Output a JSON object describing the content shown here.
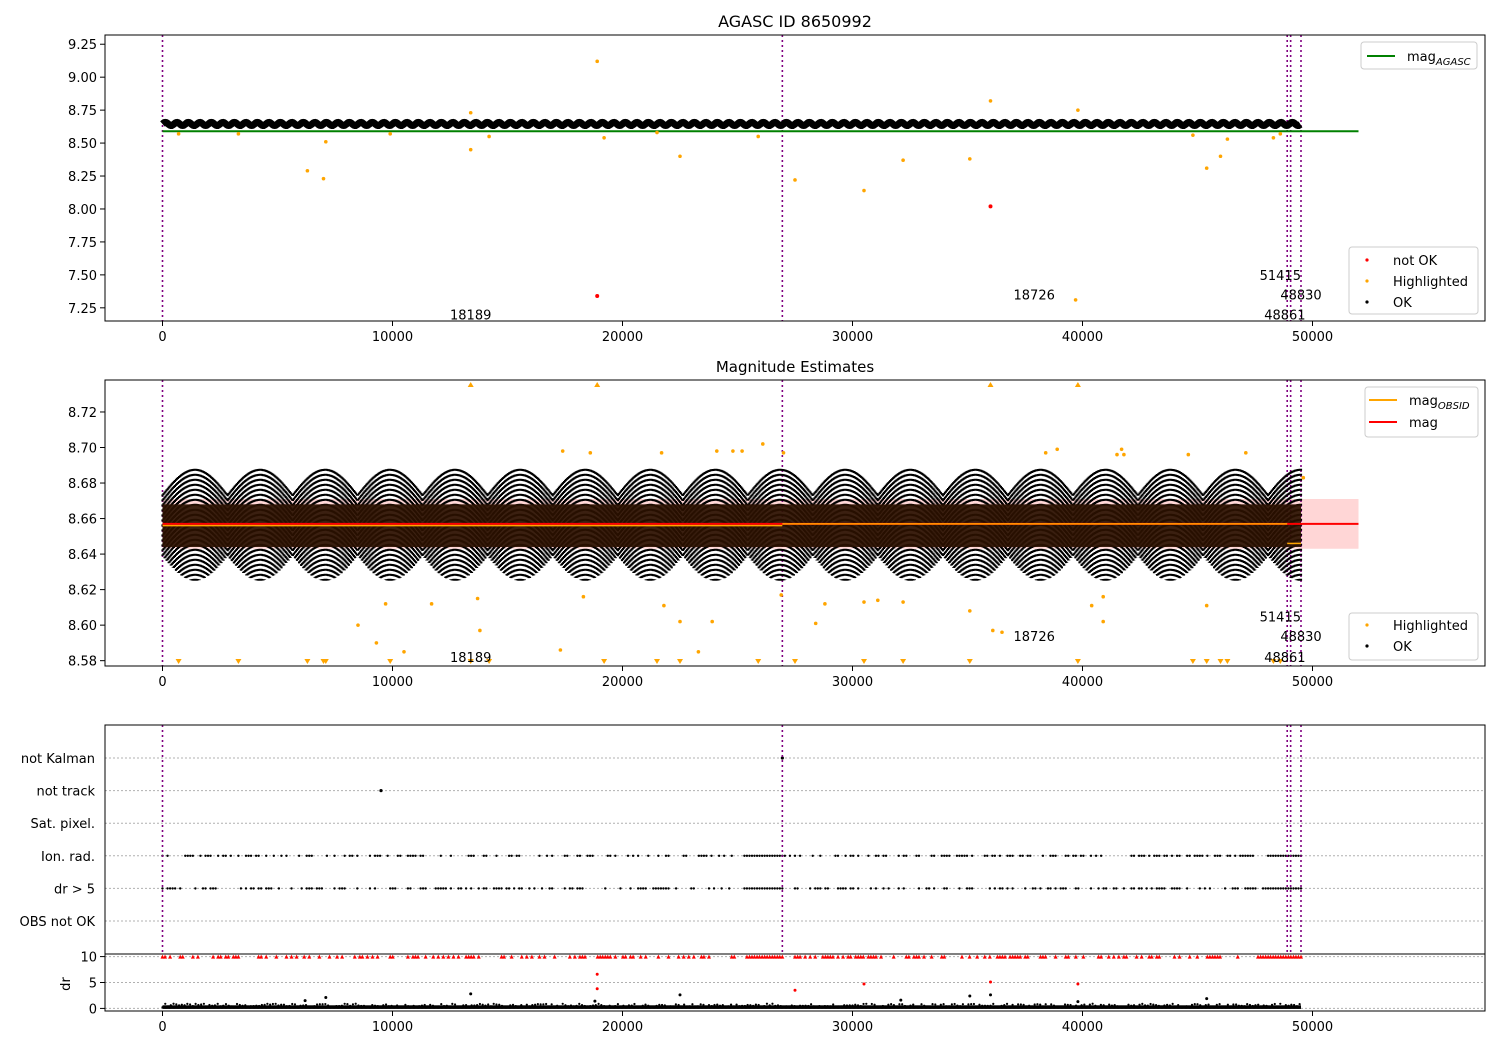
{
  "figure_title": "AGASC ID 8650992",
  "colors": {
    "ok": "#000000",
    "highlighted": "#ffa500",
    "not_ok": "#ff0000",
    "mag_agasc": "#008000",
    "mag_obsid": "#ffa500",
    "mag": "#ff0000",
    "obsid_boundary": "#800080",
    "band": "#ffd6d6",
    "flag_line": "#b0b0b0"
  },
  "obsid_boundaries_x": [
    0,
    26950,
    48900,
    49050,
    49500
  ],
  "chart_data": [
    {
      "id": "agasc",
      "type": "scatter",
      "title": "AGASC ID 8650992",
      "xlabel": "",
      "ylabel": "",
      "xlim": [
        -2500,
        57500
      ],
      "ylim": [
        7.15,
        9.32
      ],
      "xticks": [
        0,
        10000,
        20000,
        30000,
        40000,
        50000
      ],
      "xtick_labels": [
        "0",
        "10000",
        "20000",
        "30000",
        "40000",
        "50000"
      ],
      "yticks": [
        7.25,
        7.5,
        7.75,
        8.0,
        8.25,
        8.5,
        8.75,
        9.0,
        9.25
      ],
      "ytick_labels": [
        "7.25",
        "7.50",
        "7.75",
        "8.00",
        "8.25",
        "8.50",
        "8.75",
        "9.00",
        "9.25"
      ],
      "ok_band": {
        "center": 8.645,
        "amplitude": 0.012,
        "period": 500,
        "x_range": [
          0,
          49500
        ]
      },
      "mag_agasc_line": {
        "y": 8.59,
        "x_range": [
          0,
          52000
        ]
      },
      "highlighted_points": [
        [
          700,
          8.57
        ],
        [
          3300,
          8.57
        ],
        [
          6300,
          8.29
        ],
        [
          7000,
          8.23
        ],
        [
          7100,
          8.51
        ],
        [
          9900,
          8.57
        ],
        [
          13400,
          8.73
        ],
        [
          13400,
          8.45
        ],
        [
          14200,
          8.55
        ],
        [
          18900,
          9.12
        ],
        [
          19200,
          8.54
        ],
        [
          21500,
          8.58
        ],
        [
          22500,
          8.4
        ],
        [
          25900,
          8.55
        ],
        [
          27500,
          8.22
        ],
        [
          30500,
          8.14
        ],
        [
          32200,
          8.37
        ],
        [
          35100,
          8.38
        ],
        [
          36000,
          8.82
        ],
        [
          39800,
          8.75
        ],
        [
          39700,
          7.31
        ],
        [
          44800,
          8.56
        ],
        [
          45400,
          8.31
        ],
        [
          46000,
          8.4
        ],
        [
          46300,
          8.53
        ],
        [
          48300,
          8.54
        ],
        [
          48600,
          8.57
        ]
      ],
      "not_ok_points": [
        [
          18900,
          7.34
        ],
        [
          36000,
          8.02
        ]
      ],
      "annotations": [
        {
          "text": "18189",
          "x": 13400,
          "y": 7.2
        },
        {
          "text": "18726",
          "x": 37900,
          "y": 7.35
        },
        {
          "text": "51415",
          "x": 48600,
          "y": 7.5
        },
        {
          "text": "48830",
          "x": 49500,
          "y": 7.35
        },
        {
          "text": "48861",
          "x": 48800,
          "y": 7.2
        }
      ],
      "legend": {
        "placement": "upper-right",
        "entries": [
          {
            "label": "mag",
            "subscript": "AGASC",
            "marker": "line",
            "color": "#008000"
          }
        ]
      },
      "legend2": {
        "placement": "lower-right",
        "entries": [
          {
            "label": "not OK",
            "marker": "dot",
            "color": "#ff0000"
          },
          {
            "label": "Highlighted",
            "marker": "dot",
            "color": "#ffa500"
          },
          {
            "label": "OK",
            "marker": "dot",
            "color": "#000000"
          }
        ]
      }
    },
    {
      "id": "estimates",
      "type": "scatter",
      "title": "Magnitude Estimates",
      "xlabel": "",
      "ylabel": "",
      "xlim": [
        -2500,
        57500
      ],
      "ylim": [
        8.577,
        8.738
      ],
      "xticks": [
        0,
        10000,
        20000,
        30000,
        40000,
        50000
      ],
      "xtick_labels": [
        "0",
        "10000",
        "20000",
        "30000",
        "40000",
        "50000"
      ],
      "yticks": [
        8.58,
        8.6,
        8.62,
        8.64,
        8.66,
        8.68,
        8.7,
        8.72
      ],
      "ytick_labels": [
        "8.58",
        "8.60",
        "8.62",
        "8.64",
        "8.66",
        "8.68",
        "8.70",
        "8.72"
      ],
      "ok_spread": {
        "center": 8.656,
        "core_half_width": 0.012,
        "outer_low": 8.625,
        "outer_high": 8.688,
        "x_range": [
          0,
          49500
        ]
      },
      "mag_line": {
        "y": 8.657,
        "x_range": [
          0,
          52000
        ]
      },
      "mag_band": {
        "low": 8.643,
        "high": 8.671,
        "x_range": [
          0,
          52000
        ]
      },
      "mag_obsid_segments": [
        {
          "x": [
            0,
            26950
          ],
          "y": 8.656
        },
        {
          "x": [
            26950,
            48900
          ],
          "y": 8.657
        },
        {
          "x": [
            48900,
            49500
          ],
          "y": 8.646
        }
      ],
      "highlighted_points": [
        [
          8500,
          8.6
        ],
        [
          9300,
          8.59
        ],
        [
          9700,
          8.612
        ],
        [
          10500,
          8.585
        ],
        [
          11700,
          8.612
        ],
        [
          13800,
          8.597
        ],
        [
          13700,
          8.615
        ],
        [
          17300,
          8.586
        ],
        [
          17400,
          8.698
        ],
        [
          18300,
          8.616
        ],
        [
          18600,
          8.697
        ],
        [
          21800,
          8.611
        ],
        [
          22500,
          8.602
        ],
        [
          21700,
          8.697
        ],
        [
          23300,
          8.585
        ],
        [
          23900,
          8.602
        ],
        [
          24100,
          8.698
        ],
        [
          24800,
          8.698
        ],
        [
          25200,
          8.698
        ],
        [
          26100,
          8.702
        ],
        [
          26900,
          8.617
        ],
        [
          27000,
          8.697
        ],
        [
          28400,
          8.601
        ],
        [
          28800,
          8.612
        ],
        [
          30500,
          8.613
        ],
        [
          31100,
          8.614
        ],
        [
          32200,
          8.613
        ],
        [
          35100,
          8.608
        ],
        [
          36100,
          8.597
        ],
        [
          36500,
          8.596
        ],
        [
          38400,
          8.697
        ],
        [
          38900,
          8.699
        ],
        [
          40400,
          8.611
        ],
        [
          40900,
          8.616
        ],
        [
          40900,
          8.602
        ],
        [
          41500,
          8.696
        ],
        [
          41700,
          8.699
        ],
        [
          41800,
          8.696
        ],
        [
          44600,
          8.696
        ],
        [
          45400,
          8.611
        ],
        [
          47100,
          8.697
        ],
        [
          49600,
          8.683
        ]
      ],
      "lower_clipped_x": [
        700,
        3300,
        6300,
        7000,
        7100,
        9900,
        13400,
        14200,
        19200,
        21500,
        22500,
        25900,
        27500,
        30500,
        32200,
        35100,
        39800,
        44800,
        45400,
        46000,
        46300,
        48300,
        48600
      ],
      "upper_clipped_x": [
        13400,
        18900,
        36000,
        39800
      ],
      "annotations": [
        {
          "text": "18189",
          "x": 13400,
          "y": 8.582
        },
        {
          "text": "18726",
          "x": 37900,
          "y": 8.594
        },
        {
          "text": "51415",
          "x": 48600,
          "y": 8.605
        },
        {
          "text": "48830",
          "x": 49500,
          "y": 8.594
        },
        {
          "text": "48861",
          "x": 48800,
          "y": 8.582
        }
      ],
      "legend": {
        "placement": "upper-right",
        "entries": [
          {
            "label": "mag",
            "subscript": "OBSID",
            "marker": "line",
            "color": "#ffa500"
          },
          {
            "label": "mag",
            "marker": "line",
            "color": "#ff0000"
          }
        ]
      },
      "legend2": {
        "placement": "lower-right",
        "entries": [
          {
            "label": "Highlighted",
            "marker": "dot",
            "color": "#ffa500"
          },
          {
            "label": "OK",
            "marker": "dot",
            "color": "#000000"
          }
        ]
      }
    },
    {
      "id": "flags",
      "type": "scatter",
      "title": "",
      "xlabel": "",
      "ylabel": "",
      "xlim": [
        -2500,
        57500
      ],
      "categories": [
        "not Kalman",
        "not track",
        "Sat. pixel.",
        "Ion. rad.",
        "dr > 5",
        "OBS not OK"
      ],
      "flag_rows": {
        "not Kalman": [
          26950
        ],
        "not track": [
          9500
        ],
        "Sat. pixel.": [],
        "Ion. rad.": "sparse",
        "dr > 5": "sparse",
        "OBS not OK": []
      }
    },
    {
      "id": "dr",
      "type": "scatter",
      "title": "",
      "xlabel": "",
      "ylabel": "dr",
      "xlim": [
        -2500,
        57500
      ],
      "ylim": [
        -0.5,
        10.5
      ],
      "xticks": [
        0,
        10000,
        20000,
        30000,
        40000,
        50000
      ],
      "xtick_labels": [
        "0",
        "10000",
        "20000",
        "30000",
        "40000",
        "50000"
      ],
      "yticks": [
        0,
        5,
        10
      ],
      "ytick_labels": [
        "0",
        "5",
        "10"
      ],
      "clipped_value": 10,
      "ok_points": [
        [
          6200,
          1.5
        ],
        [
          7100,
          2.1
        ],
        [
          13400,
          2.8
        ],
        [
          18800,
          1.4
        ],
        [
          22500,
          2.6
        ],
        [
          32100,
          1.6
        ],
        [
          35100,
          2.4
        ],
        [
          36000,
          2.6
        ],
        [
          39800,
          1.3
        ],
        [
          45400,
          1.9
        ]
      ],
      "red_points": [
        [
          18900,
          6.6
        ],
        [
          18900,
          3.8
        ],
        [
          27500,
          3.5
        ],
        [
          30500,
          4.7
        ],
        [
          36000,
          5.1
        ],
        [
          39800,
          4.7
        ]
      ]
    }
  ]
}
